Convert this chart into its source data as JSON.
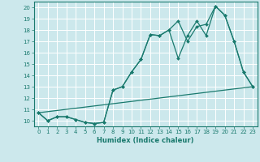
{
  "title": "",
  "xlabel": "Humidex (Indice chaleur)",
  "xlim": [
    -0.5,
    23.5
  ],
  "ylim": [
    9.5,
    20.5
  ],
  "xticks": [
    0,
    1,
    2,
    3,
    4,
    5,
    6,
    7,
    8,
    9,
    10,
    11,
    12,
    13,
    14,
    15,
    16,
    17,
    18,
    19,
    20,
    21,
    22,
    23
  ],
  "yticks": [
    10,
    11,
    12,
    13,
    14,
    15,
    16,
    17,
    18,
    19,
    20
  ],
  "background_color": "#cce8ec",
  "grid_color": "#ffffff",
  "line_color": "#1a7a6e",
  "line1_x": [
    0,
    1,
    2,
    3,
    4,
    5,
    6,
    7,
    8,
    9,
    10,
    11,
    12,
    13,
    14,
    15,
    16,
    17,
    18,
    19,
    20,
    21,
    22,
    23
  ],
  "line1_y": [
    10.7,
    10.0,
    10.35,
    10.35,
    10.1,
    9.85,
    9.75,
    9.85,
    12.7,
    13.0,
    14.3,
    15.4,
    17.6,
    17.5,
    18.0,
    15.5,
    17.5,
    18.8,
    17.5,
    20.1,
    19.3,
    17.0,
    14.3,
    13.0
  ],
  "line2_x": [
    0,
    1,
    2,
    3,
    4,
    5,
    6,
    7,
    8,
    9,
    10,
    11,
    12,
    13,
    14,
    15,
    16,
    17,
    18,
    19,
    20,
    21,
    22,
    23
  ],
  "line2_y": [
    10.7,
    10.0,
    10.35,
    10.35,
    10.1,
    9.85,
    9.75,
    9.85,
    12.7,
    13.0,
    14.3,
    15.4,
    17.6,
    17.5,
    18.0,
    18.8,
    17.0,
    18.3,
    18.5,
    20.1,
    19.3,
    17.0,
    14.3,
    13.0
  ],
  "line3_x": [
    0,
    23
  ],
  "line3_y": [
    10.7,
    13.0
  ],
  "xlabel_fontsize": 6,
  "tick_fontsize": 5,
  "ylabel_fontsize": 6
}
